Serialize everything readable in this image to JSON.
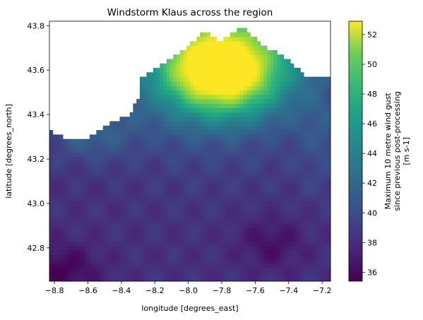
{
  "chart_data": {
    "type": "heatmap",
    "title": "Windstorm Klaus across the region",
    "xlabel": "longitude [degrees_east]",
    "ylabel": "latitude [degrees_north]",
    "colorbar_label": [
      "Maximum 10 metre wind gust",
      "since previous post-processing",
      "[m s-1]"
    ],
    "colormap": "viridis",
    "xlim": [
      -8.83,
      -7.15
    ],
    "ylim": [
      42.65,
      43.82
    ],
    "clim": [
      35.4,
      52.9
    ],
    "xticks": [
      -8.8,
      -8.6,
      -8.4,
      -8.2,
      -8.0,
      -7.8,
      -7.6,
      -7.4,
      -7.2
    ],
    "xtick_labels": [
      "−8.8",
      "−8.6",
      "−8.4",
      "−8.2",
      "−8.0",
      "−7.8",
      "−7.6",
      "−7.4",
      "−7.2"
    ],
    "yticks": [
      42.8,
      43.0,
      43.2,
      43.4,
      43.6,
      43.8
    ],
    "ytick_labels": [
      "42.8",
      "43.0",
      "43.2",
      "43.4",
      "43.6",
      "43.8"
    ],
    "cticks": [
      36,
      38,
      40,
      42,
      44,
      46,
      48,
      50,
      52
    ],
    "ctick_labels": [
      "36",
      "38",
      "40",
      "42",
      "44",
      "46",
      "48",
      "50",
      "52"
    ],
    "grid": false,
    "field_summary": {
      "peak": {
        "lon": -7.8,
        "lat": 43.6,
        "value": 52.5
      },
      "min_region": {
        "lon": -8.75,
        "lat": 42.7,
        "value": 35.8
      },
      "coast_profile": [
        {
          "lon": -8.83,
          "lat": 43.33
        },
        {
          "lon": -8.75,
          "lat": 43.3
        },
        {
          "lon": -8.6,
          "lat": 43.3
        },
        {
          "lon": -8.5,
          "lat": 43.35
        },
        {
          "lon": -8.35,
          "lat": 43.4
        },
        {
          "lon": -8.3,
          "lat": 43.48
        },
        {
          "lon": -8.3,
          "lat": 43.55
        },
        {
          "lon": -8.15,
          "lat": 43.63
        },
        {
          "lon": -8.02,
          "lat": 43.7
        },
        {
          "lon": -7.9,
          "lat": 43.78
        },
        {
          "lon": -7.8,
          "lat": 43.73
        },
        {
          "lon": -7.68,
          "lat": 43.8
        },
        {
          "lon": -7.55,
          "lat": 43.71
        },
        {
          "lon": -7.42,
          "lat": 43.66
        },
        {
          "lon": -7.3,
          "lat": 43.58
        },
        {
          "lon": -7.15,
          "lat": 43.56
        }
      ]
    }
  }
}
